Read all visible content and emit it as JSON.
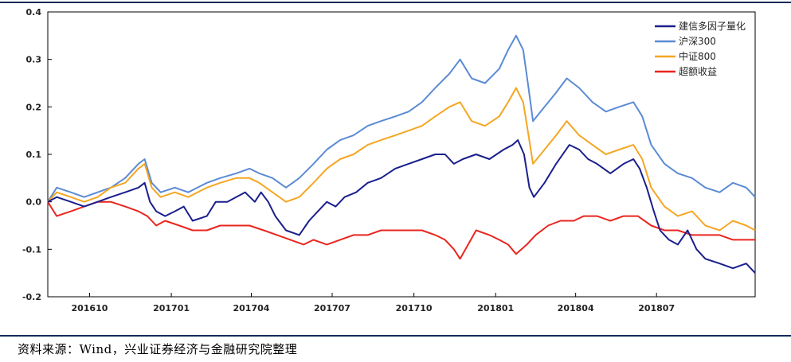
{
  "chart_data": {
    "type": "line",
    "title": "",
    "xlabel": "",
    "ylabel": "",
    "x_start": "2016-08-15",
    "x_end": "2018-10-20",
    "xlim": [
      "2016-08-15",
      "2018-10-20"
    ],
    "ylim": [
      -0.2,
      0.4
    ],
    "grid": false,
    "legend_position": "top-right",
    "x_ticks": [
      {
        "label": "201610",
        "date": "2016-10-01"
      },
      {
        "label": "201701",
        "date": "2017-01-01"
      },
      {
        "label": "201704",
        "date": "2017-04-01"
      },
      {
        "label": "201707",
        "date": "2017-07-01"
      },
      {
        "label": "201710",
        "date": "2017-10-01"
      },
      {
        "label": "201801",
        "date": "2018-01-01"
      },
      {
        "label": "201804",
        "date": "2018-04-01"
      },
      {
        "label": "201807",
        "date": "2018-07-01"
      }
    ],
    "y_ticks": [
      {
        "label": "0.4",
        "value": 0.4
      },
      {
        "label": "0.3",
        "value": 0.3
      },
      {
        "label": "0.2",
        "value": 0.2
      },
      {
        "label": "0.1",
        "value": 0.1
      },
      {
        "label": "0.0",
        "value": 0.0
      },
      {
        "label": "-0.1",
        "value": -0.1
      },
      {
        "label": "-0.2",
        "value": -0.2
      }
    ],
    "series": [
      {
        "name": "建信多因子量化",
        "color": "#1a1f8c",
        "points": [
          [
            "2016-08-15",
            0.0
          ],
          [
            "2016-08-25",
            0.01
          ],
          [
            "2016-09-10",
            0.0
          ],
          [
            "2016-09-25",
            -0.01
          ],
          [
            "2016-10-10",
            0.0
          ],
          [
            "2016-10-25",
            0.01
          ],
          [
            "2016-11-10",
            0.02
          ],
          [
            "2016-11-25",
            0.03
          ],
          [
            "2016-12-02",
            0.04
          ],
          [
            "2016-12-08",
            0.0
          ],
          [
            "2016-12-15",
            -0.02
          ],
          [
            "2016-12-25",
            -0.03
          ],
          [
            "2017-01-05",
            -0.02
          ],
          [
            "2017-01-15",
            -0.01
          ],
          [
            "2017-01-25",
            -0.04
          ],
          [
            "2017-02-10",
            -0.03
          ],
          [
            "2017-02-20",
            0.0
          ],
          [
            "2017-03-05",
            0.0
          ],
          [
            "2017-03-15",
            0.01
          ],
          [
            "2017-03-25",
            0.02
          ],
          [
            "2017-04-05",
            0.0
          ],
          [
            "2017-04-12",
            0.02
          ],
          [
            "2017-04-20",
            0.0
          ],
          [
            "2017-04-28",
            -0.03
          ],
          [
            "2017-05-10",
            -0.06
          ],
          [
            "2017-05-25",
            -0.07
          ],
          [
            "2017-06-05",
            -0.04
          ],
          [
            "2017-06-15",
            -0.02
          ],
          [
            "2017-06-25",
            0.0
          ],
          [
            "2017-07-05",
            -0.01
          ],
          [
            "2017-07-15",
            0.01
          ],
          [
            "2017-07-28",
            0.02
          ],
          [
            "2017-08-10",
            0.04
          ],
          [
            "2017-08-25",
            0.05
          ],
          [
            "2017-09-10",
            0.07
          ],
          [
            "2017-09-25",
            0.08
          ],
          [
            "2017-10-10",
            0.09
          ],
          [
            "2017-10-25",
            0.1
          ],
          [
            "2017-11-05",
            0.1
          ],
          [
            "2017-11-15",
            0.08
          ],
          [
            "2017-11-25",
            0.09
          ],
          [
            "2017-12-10",
            0.1
          ],
          [
            "2017-12-25",
            0.09
          ],
          [
            "2018-01-10",
            0.11
          ],
          [
            "2018-01-20",
            0.12
          ],
          [
            "2018-01-26",
            0.13
          ],
          [
            "2018-02-02",
            0.1
          ],
          [
            "2018-02-08",
            0.03
          ],
          [
            "2018-02-13",
            0.01
          ],
          [
            "2018-02-25",
            0.04
          ],
          [
            "2018-03-10",
            0.08
          ],
          [
            "2018-03-25",
            0.12
          ],
          [
            "2018-04-05",
            0.11
          ],
          [
            "2018-04-15",
            0.09
          ],
          [
            "2018-04-25",
            0.08
          ],
          [
            "2018-05-10",
            0.06
          ],
          [
            "2018-05-25",
            0.08
          ],
          [
            "2018-06-05",
            0.09
          ],
          [
            "2018-06-12",
            0.07
          ],
          [
            "2018-06-20",
            0.03
          ],
          [
            "2018-06-28",
            -0.02
          ],
          [
            "2018-07-05",
            -0.06
          ],
          [
            "2018-07-15",
            -0.08
          ],
          [
            "2018-07-25",
            -0.09
          ],
          [
            "2018-08-05",
            -0.06
          ],
          [
            "2018-08-15",
            -0.1
          ],
          [
            "2018-08-25",
            -0.12
          ],
          [
            "2018-09-10",
            -0.13
          ],
          [
            "2018-09-25",
            -0.14
          ],
          [
            "2018-10-10",
            -0.13
          ],
          [
            "2018-10-20",
            -0.15
          ]
        ]
      },
      {
        "name": "沪深300",
        "color": "#5b8bd4",
        "points": [
          [
            "2016-08-15",
            0.0
          ],
          [
            "2016-08-25",
            0.03
          ],
          [
            "2016-09-10",
            0.02
          ],
          [
            "2016-09-25",
            0.01
          ],
          [
            "2016-10-10",
            0.02
          ],
          [
            "2016-10-25",
            0.03
          ],
          [
            "2016-11-10",
            0.05
          ],
          [
            "2016-11-25",
            0.08
          ],
          [
            "2016-12-02",
            0.09
          ],
          [
            "2016-12-10",
            0.04
          ],
          [
            "2016-12-20",
            0.02
          ],
          [
            "2017-01-05",
            0.03
          ],
          [
            "2017-01-20",
            0.02
          ],
          [
            "2017-02-10",
            0.04
          ],
          [
            "2017-02-25",
            0.05
          ],
          [
            "2017-03-15",
            0.06
          ],
          [
            "2017-03-30",
            0.07
          ],
          [
            "2017-04-10",
            0.06
          ],
          [
            "2017-04-25",
            0.05
          ],
          [
            "2017-05-10",
            0.03
          ],
          [
            "2017-05-25",
            0.05
          ],
          [
            "2017-06-10",
            0.08
          ],
          [
            "2017-06-25",
            0.11
          ],
          [
            "2017-07-10",
            0.13
          ],
          [
            "2017-07-25",
            0.14
          ],
          [
            "2017-08-10",
            0.16
          ],
          [
            "2017-08-25",
            0.17
          ],
          [
            "2017-09-10",
            0.18
          ],
          [
            "2017-09-25",
            0.19
          ],
          [
            "2017-10-10",
            0.21
          ],
          [
            "2017-10-25",
            0.24
          ],
          [
            "2017-11-10",
            0.27
          ],
          [
            "2017-11-22",
            0.3
          ],
          [
            "2017-12-05",
            0.26
          ],
          [
            "2017-12-20",
            0.25
          ],
          [
            "2018-01-05",
            0.28
          ],
          [
            "2018-01-15",
            0.32
          ],
          [
            "2018-01-24",
            0.35
          ],
          [
            "2018-02-01",
            0.32
          ],
          [
            "2018-02-07",
            0.24
          ],
          [
            "2018-02-12",
            0.17
          ],
          [
            "2018-02-25",
            0.2
          ],
          [
            "2018-03-10",
            0.23
          ],
          [
            "2018-03-22",
            0.26
          ],
          [
            "2018-04-05",
            0.24
          ],
          [
            "2018-04-20",
            0.21
          ],
          [
            "2018-05-05",
            0.19
          ],
          [
            "2018-05-20",
            0.2
          ],
          [
            "2018-06-05",
            0.21
          ],
          [
            "2018-06-15",
            0.18
          ],
          [
            "2018-06-25",
            0.12
          ],
          [
            "2018-07-10",
            0.08
          ],
          [
            "2018-07-25",
            0.06
          ],
          [
            "2018-08-10",
            0.05
          ],
          [
            "2018-08-25",
            0.03
          ],
          [
            "2018-09-10",
            0.02
          ],
          [
            "2018-09-25",
            0.04
          ],
          [
            "2018-10-10",
            0.03
          ],
          [
            "2018-10-20",
            0.01
          ]
        ]
      },
      {
        "name": "中证800",
        "color": "#f5a623",
        "points": [
          [
            "2016-08-15",
            0.0
          ],
          [
            "2016-08-25",
            0.02
          ],
          [
            "2016-09-10",
            0.01
          ],
          [
            "2016-09-25",
            0.0
          ],
          [
            "2016-10-10",
            0.01
          ],
          [
            "2016-10-25",
            0.03
          ],
          [
            "2016-11-10",
            0.04
          ],
          [
            "2016-11-25",
            0.07
          ],
          [
            "2016-12-02",
            0.08
          ],
          [
            "2016-12-10",
            0.03
          ],
          [
            "2016-12-20",
            0.01
          ],
          [
            "2017-01-05",
            0.02
          ],
          [
            "2017-01-20",
            0.01
          ],
          [
            "2017-02-10",
            0.03
          ],
          [
            "2017-02-25",
            0.04
          ],
          [
            "2017-03-15",
            0.05
          ],
          [
            "2017-03-30",
            0.05
          ],
          [
            "2017-04-10",
            0.04
          ],
          [
            "2017-04-25",
            0.02
          ],
          [
            "2017-05-10",
            0.0
          ],
          [
            "2017-05-25",
            0.01
          ],
          [
            "2017-06-10",
            0.04
          ],
          [
            "2017-06-25",
            0.07
          ],
          [
            "2017-07-10",
            0.09
          ],
          [
            "2017-07-25",
            0.1
          ],
          [
            "2017-08-10",
            0.12
          ],
          [
            "2017-08-25",
            0.13
          ],
          [
            "2017-09-10",
            0.14
          ],
          [
            "2017-09-25",
            0.15
          ],
          [
            "2017-10-10",
            0.16
          ],
          [
            "2017-10-25",
            0.18
          ],
          [
            "2017-11-10",
            0.2
          ],
          [
            "2017-11-22",
            0.21
          ],
          [
            "2017-12-05",
            0.17
          ],
          [
            "2017-12-20",
            0.16
          ],
          [
            "2018-01-05",
            0.18
          ],
          [
            "2018-01-15",
            0.21
          ],
          [
            "2018-01-24",
            0.24
          ],
          [
            "2018-02-01",
            0.21
          ],
          [
            "2018-02-07",
            0.14
          ],
          [
            "2018-02-12",
            0.08
          ],
          [
            "2018-02-25",
            0.11
          ],
          [
            "2018-03-10",
            0.14
          ],
          [
            "2018-03-22",
            0.17
          ],
          [
            "2018-04-05",
            0.14
          ],
          [
            "2018-04-20",
            0.12
          ],
          [
            "2018-05-05",
            0.1
          ],
          [
            "2018-05-20",
            0.11
          ],
          [
            "2018-06-05",
            0.12
          ],
          [
            "2018-06-15",
            0.09
          ],
          [
            "2018-06-25",
            0.03
          ],
          [
            "2018-07-10",
            -0.01
          ],
          [
            "2018-07-25",
            -0.03
          ],
          [
            "2018-08-10",
            -0.02
          ],
          [
            "2018-08-25",
            -0.05
          ],
          [
            "2018-09-10",
            -0.06
          ],
          [
            "2018-09-25",
            -0.04
          ],
          [
            "2018-10-10",
            -0.05
          ],
          [
            "2018-10-20",
            -0.06
          ]
        ]
      },
      {
        "name": "超额收益",
        "color": "#e8261f",
        "points": [
          [
            "2016-08-15",
            0.0
          ],
          [
            "2016-08-25",
            -0.03
          ],
          [
            "2016-09-10",
            -0.02
          ],
          [
            "2016-09-25",
            -0.01
          ],
          [
            "2016-10-10",
            0.0
          ],
          [
            "2016-10-25",
            0.0
          ],
          [
            "2016-11-10",
            -0.01
          ],
          [
            "2016-11-25",
            -0.02
          ],
          [
            "2016-12-05",
            -0.03
          ],
          [
            "2016-12-15",
            -0.05
          ],
          [
            "2016-12-25",
            -0.04
          ],
          [
            "2017-01-10",
            -0.05
          ],
          [
            "2017-01-25",
            -0.06
          ],
          [
            "2017-02-10",
            -0.06
          ],
          [
            "2017-02-25",
            -0.05
          ],
          [
            "2017-03-15",
            -0.05
          ],
          [
            "2017-03-30",
            -0.05
          ],
          [
            "2017-04-15",
            -0.06
          ],
          [
            "2017-04-30",
            -0.07
          ],
          [
            "2017-05-15",
            -0.08
          ],
          [
            "2017-05-30",
            -0.09
          ],
          [
            "2017-06-10",
            -0.08
          ],
          [
            "2017-06-25",
            -0.09
          ],
          [
            "2017-07-10",
            -0.08
          ],
          [
            "2017-07-25",
            -0.07
          ],
          [
            "2017-08-10",
            -0.07
          ],
          [
            "2017-08-25",
            -0.06
          ],
          [
            "2017-09-10",
            -0.06
          ],
          [
            "2017-09-25",
            -0.06
          ],
          [
            "2017-10-10",
            -0.06
          ],
          [
            "2017-10-25",
            -0.07
          ],
          [
            "2017-11-05",
            -0.08
          ],
          [
            "2017-11-15",
            -0.1
          ],
          [
            "2017-11-22",
            -0.12
          ],
          [
            "2017-12-01",
            -0.09
          ],
          [
            "2017-12-10",
            -0.06
          ],
          [
            "2017-12-25",
            -0.07
          ],
          [
            "2018-01-05",
            -0.08
          ],
          [
            "2018-01-15",
            -0.09
          ],
          [
            "2018-01-24",
            -0.11
          ],
          [
            "2018-02-05",
            -0.09
          ],
          [
            "2018-02-15",
            -0.07
          ],
          [
            "2018-03-01",
            -0.05
          ],
          [
            "2018-03-15",
            -0.04
          ],
          [
            "2018-03-30",
            -0.04
          ],
          [
            "2018-04-10",
            -0.03
          ],
          [
            "2018-04-25",
            -0.03
          ],
          [
            "2018-05-10",
            -0.04
          ],
          [
            "2018-05-25",
            -0.03
          ],
          [
            "2018-06-10",
            -0.03
          ],
          [
            "2018-06-25",
            -0.05
          ],
          [
            "2018-07-10",
            -0.06
          ],
          [
            "2018-07-25",
            -0.06
          ],
          [
            "2018-08-10",
            -0.07
          ],
          [
            "2018-08-25",
            -0.07
          ],
          [
            "2018-09-10",
            -0.07
          ],
          [
            "2018-09-25",
            -0.08
          ],
          [
            "2018-10-10",
            -0.08
          ],
          [
            "2018-10-20",
            -0.08
          ]
        ]
      }
    ]
  },
  "source": "资料来源：Wind，兴业证券经济与金融研究院整理"
}
